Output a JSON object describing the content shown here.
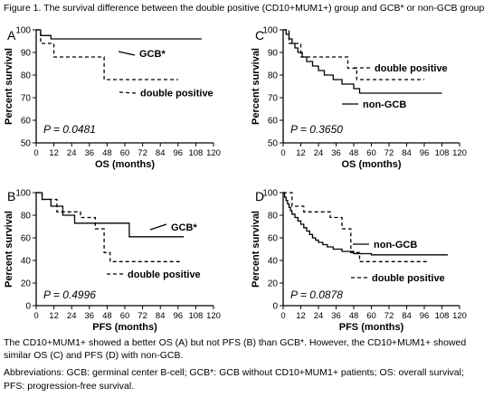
{
  "figure": {
    "title": "Figure 1. The survival difference between the double positive (CD10+MUM1+) group and GCB* or non-GCB group",
    "caption_lines": [
      "The CD10+MUM1+ showed a better OS (A) but not PFS (B) than GCB*. However, the CD10+MUM1+ showed",
      "similar OS (C) and PFS (D) with non-GCB.",
      "Abbreviations: GCB: germinal center B-cell; GCB*: GCB without CD10+MUM1+ patients; OS: overall survival;",
      "PFS: progression-free survival."
    ],
    "colors": {
      "line": "#000000",
      "background": "#ffffff"
    }
  },
  "chart_data": [
    {
      "panel": "A",
      "type": "line",
      "subtype": "kaplan-meier",
      "xlabel": "OS (months)",
      "ylabel": "Percent survival",
      "xlim": [
        0,
        120
      ],
      "ylim": [
        50,
        100
      ],
      "xticks": [
        0,
        12,
        24,
        36,
        48,
        60,
        72,
        84,
        96,
        108,
        120
      ],
      "yticks": [
        50,
        60,
        70,
        80,
        90,
        100
      ],
      "pvalue": "P = 0.0481",
      "series": [
        {
          "name": "GCB*",
          "style": "solid",
          "x": [
            0,
            3,
            3,
            10,
            10,
            112
          ],
          "y": [
            100,
            100,
            97.5,
            97.5,
            96,
            96
          ]
        },
        {
          "name": "double positive",
          "style": "dashed",
          "x": [
            0,
            3,
            3,
            12,
            12,
            46,
            46,
            96
          ],
          "y": [
            100,
            100,
            94,
            94,
            88,
            88,
            78,
            78
          ]
        }
      ]
    },
    {
      "panel": "B",
      "type": "line",
      "subtype": "kaplan-meier",
      "xlabel": "PFS (months)",
      "ylabel": "Percent survival",
      "xlim": [
        0,
        120
      ],
      "ylim": [
        0,
        100
      ],
      "xticks": [
        0,
        12,
        24,
        36,
        48,
        60,
        72,
        84,
        96,
        108,
        120
      ],
      "yticks": [
        0,
        20,
        40,
        60,
        80,
        100
      ],
      "pvalue": "P = 0.4996",
      "series": [
        {
          "name": "GCB*",
          "style": "solid",
          "x": [
            0,
            4,
            4,
            10,
            10,
            18,
            18,
            26,
            26,
            63,
            63,
            100
          ],
          "y": [
            100,
            100,
            94,
            94,
            88,
            88,
            80,
            80,
            73,
            73,
            61,
            61
          ]
        },
        {
          "name": "double positive",
          "style": "dashed",
          "x": [
            0,
            4,
            4,
            14,
            14,
            30,
            30,
            40,
            40,
            46,
            46,
            50,
            50,
            98
          ],
          "y": [
            100,
            100,
            94,
            94,
            83,
            83,
            78,
            78,
            68,
            68,
            47,
            47,
            39,
            39
          ]
        }
      ]
    },
    {
      "panel": "C",
      "type": "line",
      "subtype": "kaplan-meier",
      "xlabel": "OS (months)",
      "ylabel": "Percent survival",
      "xlim": [
        0,
        120
      ],
      "ylim": [
        50,
        100
      ],
      "xticks": [
        0,
        12,
        24,
        36,
        48,
        60,
        72,
        84,
        96,
        108,
        120
      ],
      "yticks": [
        50,
        60,
        70,
        80,
        90,
        100
      ],
      "pvalue": "P = 0.3650",
      "series": [
        {
          "name": "non-GCB",
          "style": "solid",
          "x": [
            0,
            2,
            2,
            4,
            4,
            6,
            6,
            8,
            8,
            10,
            10,
            13,
            13,
            16,
            16,
            20,
            20,
            24,
            24,
            28,
            28,
            34,
            34,
            40,
            40,
            48,
            48,
            52,
            52,
            108
          ],
          "y": [
            100,
            100,
            98,
            98,
            96,
            96,
            94,
            94,
            92,
            92,
            90,
            90,
            88,
            88,
            86,
            86,
            84,
            84,
            82,
            82,
            80,
            80,
            78,
            78,
            76,
            76,
            74,
            74,
            72,
            72
          ]
        },
        {
          "name": "double positive",
          "style": "dashed",
          "x": [
            0,
            4,
            4,
            12,
            12,
            44,
            44,
            50,
            50,
            96
          ],
          "y": [
            100,
            100,
            94,
            94,
            88,
            88,
            83,
            83,
            78,
            78
          ]
        }
      ]
    },
    {
      "panel": "D",
      "type": "line",
      "subtype": "kaplan-meier",
      "xlabel": "PFS (months)",
      "ylabel": "Percent survival",
      "xlim": [
        0,
        120
      ],
      "ylim": [
        0,
        100
      ],
      "xticks": [
        0,
        12,
        24,
        36,
        48,
        60,
        72,
        84,
        96,
        108,
        120
      ],
      "yticks": [
        0,
        20,
        40,
        60,
        80,
        100
      ],
      "pvalue": "P = 0.0878",
      "series": [
        {
          "name": "non-GCB",
          "style": "solid",
          "x": [
            0,
            1,
            1,
            2,
            2,
            3,
            3,
            4,
            4,
            5,
            5,
            6,
            6,
            8,
            8,
            10,
            10,
            12,
            12,
            14,
            14,
            16,
            16,
            18,
            18,
            20,
            20,
            22,
            22,
            24,
            24,
            27,
            27,
            30,
            30,
            34,
            34,
            40,
            40,
            48,
            48,
            60,
            60,
            112
          ],
          "y": [
            100,
            100,
            96,
            96,
            93,
            93,
            90,
            90,
            87,
            87,
            84,
            84,
            81,
            81,
            78,
            78,
            75,
            75,
            72,
            72,
            69,
            69,
            66,
            66,
            63,
            63,
            60,
            60,
            58,
            58,
            56,
            56,
            54,
            54,
            52,
            52,
            50,
            50,
            48,
            48,
            46,
            46,
            45,
            45
          ]
        },
        {
          "name": "double positive",
          "style": "dashed",
          "x": [
            0,
            6,
            6,
            14,
            14,
            32,
            32,
            40,
            40,
            46,
            46,
            52,
            52,
            98
          ],
          "y": [
            100,
            100,
            88,
            88,
            83,
            83,
            78,
            78,
            68,
            68,
            47,
            47,
            39,
            39
          ]
        }
      ]
    }
  ]
}
